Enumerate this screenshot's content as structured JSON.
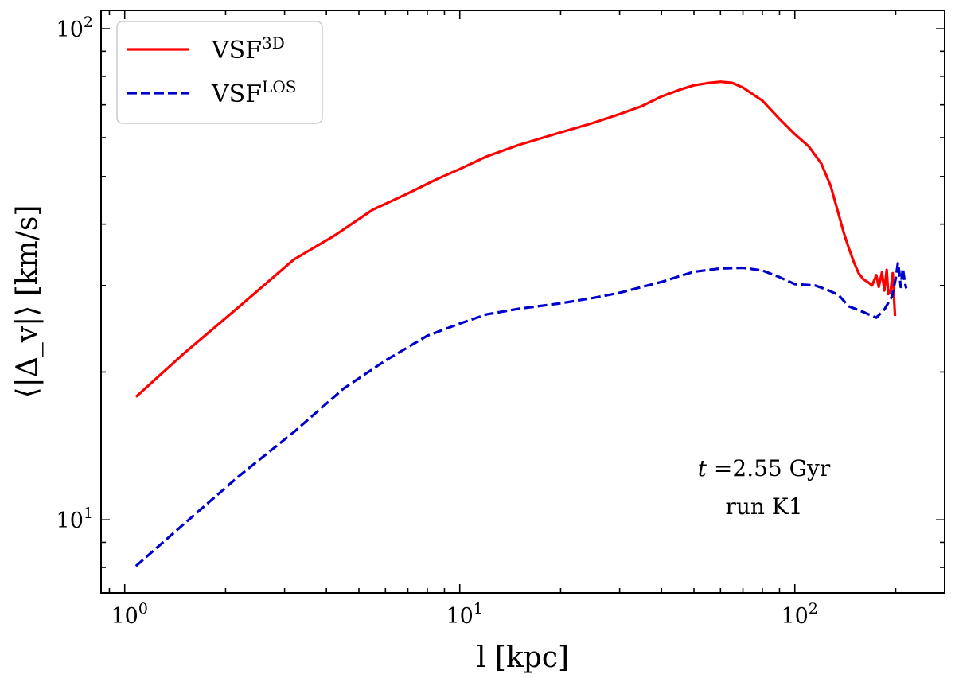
{
  "chart_data": {
    "type": "line",
    "title": "",
    "xlabel": "l [kpc]",
    "ylabel": "⟨|Δ_v|⟩ [km/s]",
    "xscale": "log",
    "yscale": "log",
    "xlim": [
      0.85,
      280
    ],
    "ylim": [
      7.1,
      109
    ],
    "x_ticks": [
      {
        "value": 1,
        "base": "10",
        "exp": "0"
      },
      {
        "value": 10,
        "base": "10",
        "exp": "1"
      },
      {
        "value": 100,
        "base": "10",
        "exp": "2"
      }
    ],
    "y_ticks": [
      {
        "value": 10,
        "base": "10",
        "exp": "1"
      },
      {
        "value": 100,
        "base": "10",
        "exp": "2"
      }
    ],
    "legend": {
      "placement": "top-left",
      "entries": [
        {
          "series": "VSF_3D",
          "base": "VSF",
          "sup": "3D"
        },
        {
          "series": "VSF_LOS",
          "base": "VSF",
          "sup": "LOS"
        }
      ]
    },
    "annotations": {
      "time_var": "t",
      "time_text": "=2.55 Gyr",
      "run_text": "run K1"
    },
    "series": [
      {
        "name": "VSF_3D",
        "color": "#ff0000",
        "style": "solid",
        "points": [
          [
            1.08,
            17.8
          ],
          [
            1.5,
            21.8
          ],
          [
            2.2,
            27.2
          ],
          [
            3.2,
            33.9
          ],
          [
            4.2,
            37.8
          ],
          [
            5.5,
            42.8
          ],
          [
            7.0,
            46.2
          ],
          [
            8.5,
            49.3
          ],
          [
            10.0,
            51.8
          ],
          [
            12.0,
            54.9
          ],
          [
            15.0,
            58.0
          ],
          [
            20.0,
            61.5
          ],
          [
            25.0,
            64.3
          ],
          [
            30.0,
            67.0
          ],
          [
            35.0,
            69.6
          ],
          [
            40.0,
            72.8
          ],
          [
            45.0,
            75.0
          ],
          [
            50.0,
            76.7
          ],
          [
            55.0,
            77.5
          ],
          [
            60.0,
            78.0
          ],
          [
            65.0,
            77.6
          ],
          [
            70.0,
            75.9
          ],
          [
            80.0,
            71.4
          ],
          [
            90.0,
            65.5
          ],
          [
            100.0,
            61.0
          ],
          [
            110.0,
            57.6
          ],
          [
            120.0,
            53.1
          ],
          [
            128.0,
            47.8
          ],
          [
            135.0,
            42.0
          ],
          [
            140.0,
            38.4
          ],
          [
            145.0,
            35.7
          ],
          [
            150.0,
            33.5
          ],
          [
            155.0,
            31.8
          ],
          [
            160.0,
            30.9
          ],
          [
            165.0,
            30.5
          ],
          [
            170.0,
            30.0
          ],
          [
            175.0,
            31.5
          ],
          [
            178.0,
            29.8
          ],
          [
            182.0,
            31.9
          ],
          [
            185.0,
            29.3
          ],
          [
            188.0,
            32.3
          ],
          [
            190.0,
            28.8
          ],
          [
            193.0,
            29.2
          ],
          [
            196.0,
            31.8
          ],
          [
            199.0,
            26.0
          ]
        ]
      },
      {
        "name": "VSF_LOS",
        "color": "#0000cc",
        "style": "dashed",
        "points": [
          [
            1.08,
            8.05
          ],
          [
            1.5,
            9.8
          ],
          [
            2.2,
            12.3
          ],
          [
            3.2,
            15.1
          ],
          [
            4.5,
            18.5
          ],
          [
            6.0,
            21.1
          ],
          [
            8.0,
            23.7
          ],
          [
            10.0,
            25.1
          ],
          [
            12.0,
            26.2
          ],
          [
            15.0,
            26.9
          ],
          [
            20.0,
            27.6
          ],
          [
            25.0,
            28.3
          ],
          [
            30.0,
            29.0
          ],
          [
            35.0,
            29.8
          ],
          [
            40.0,
            30.5
          ],
          [
            45.0,
            31.3
          ],
          [
            50.0,
            32.0
          ],
          [
            60.0,
            32.5
          ],
          [
            70.0,
            32.6
          ],
          [
            80.0,
            32.2
          ],
          [
            90.0,
            31.2
          ],
          [
            100.0,
            30.2
          ],
          [
            115.0,
            30.0
          ],
          [
            125.0,
            29.4
          ],
          [
            135.0,
            28.7
          ],
          [
            145.0,
            27.2
          ],
          [
            160.0,
            26.5
          ],
          [
            175.0,
            25.8
          ],
          [
            185.0,
            26.8
          ],
          [
            195.0,
            28.5
          ],
          [
            200.0,
            31.0
          ],
          [
            203.0,
            33.3
          ],
          [
            205.0,
            32.0
          ],
          [
            207.0,
            29.8
          ],
          [
            210.0,
            32.5
          ],
          [
            213.0,
            30.5
          ],
          [
            215.0,
            29.6
          ]
        ]
      }
    ]
  }
}
